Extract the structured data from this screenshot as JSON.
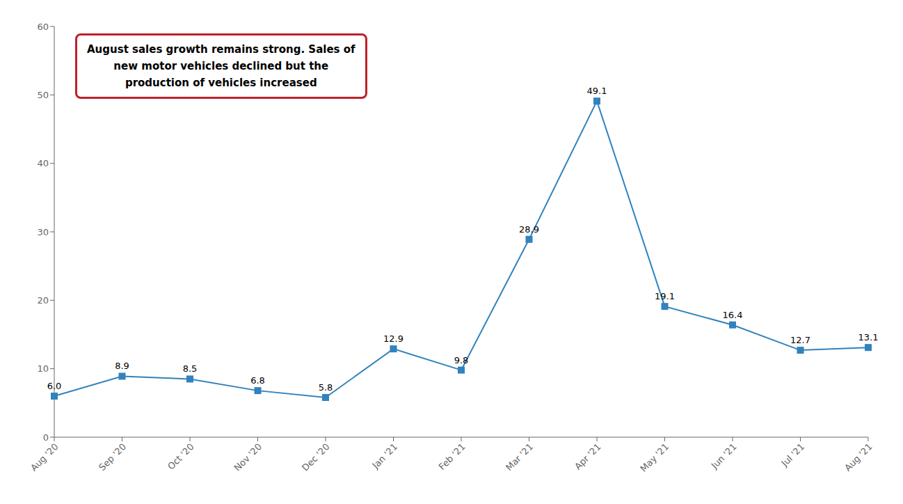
{
  "chart_data": {
    "type": "line",
    "annotation": "August sales growth remains strong. Sales of\nnew motor vehicles declined but the\nproduction of vehicles increased",
    "categories": [
      "Aug '20",
      "Sep '20",
      "Oct '20",
      "Nov '20",
      "Dec '20",
      "Jan '21",
      "Feb '21",
      "Mar '21",
      "Apr '21",
      "May '21",
      "Jun '21",
      "Jul '21",
      "Aug '21"
    ],
    "values": [
      6.0,
      8.9,
      8.5,
      6.8,
      5.8,
      12.9,
      9.8,
      28.9,
      49.1,
      19.1,
      16.4,
      12.7,
      13.1
    ],
    "value_labels": [
      "6.0",
      "8.9",
      "8.5",
      "6.8",
      "5.8",
      "12.9",
      "9.8",
      "28.9",
      "49.1",
      "19.1",
      "16.4",
      "12.7",
      "13.1"
    ],
    "ylim": [
      0,
      60
    ],
    "yticks": [
      0,
      10,
      20,
      30,
      40,
      50,
      60
    ],
    "grid": false,
    "data_labels": true,
    "marker": "square"
  }
}
